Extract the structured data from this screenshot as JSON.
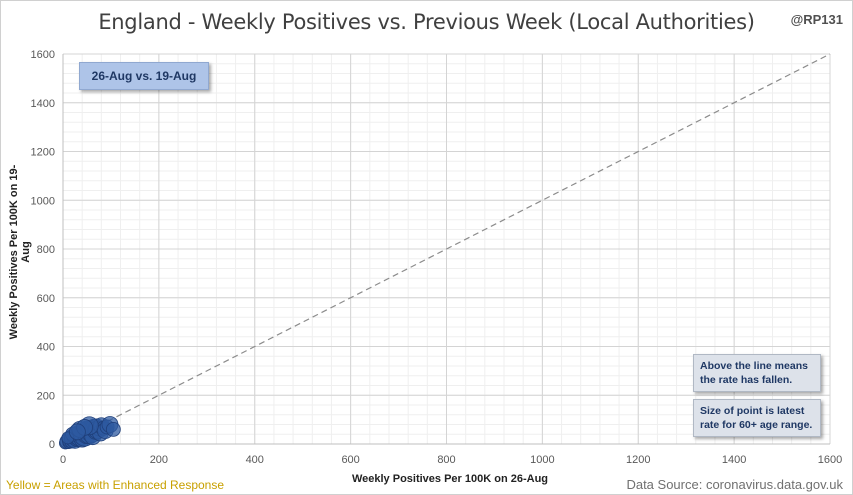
{
  "header": {
    "title": "England - Weekly Positives vs. Previous Week (Local Authorities)",
    "handle": "@RP131"
  },
  "badge": {
    "label": "26-Aug vs. 19-Aug"
  },
  "notes": {
    "above_line": "Above the line means the rate has fallen.",
    "point_size": "Size of point is latest rate for 60+ age range."
  },
  "footer": {
    "legend_note": "Yellow = Areas with Enhanced Response",
    "source": "Data Source: coronavirus.data.gov.uk"
  },
  "chart_data": {
    "type": "scatter",
    "title": "England - Weekly Positives vs. Previous Week (Local Authorities)",
    "xlabel": "Weekly Positives Per 100K on 26-Aug",
    "ylabel": "Weekly Positives Per 100K on 19-Aug",
    "xlim": [
      0,
      1600
    ],
    "ylim": [
      0,
      1600
    ],
    "x_ticks": [
      0,
      200,
      400,
      600,
      800,
      1000,
      1200,
      1400,
      1600
    ],
    "y_ticks": [
      0,
      200,
      400,
      600,
      800,
      1000,
      1200,
      1400,
      1600
    ],
    "grid": true,
    "reference_line": {
      "style": "dashed",
      "from": [
        0,
        0
      ],
      "to": [
        1600,
        1600
      ]
    },
    "point_color": "#2e5aa0",
    "points": [
      {
        "x": 5,
        "y": 4,
        "r": 6
      },
      {
        "x": 8,
        "y": 10,
        "r": 7
      },
      {
        "x": 12,
        "y": 6,
        "r": 6
      },
      {
        "x": 15,
        "y": 18,
        "r": 8
      },
      {
        "x": 18,
        "y": 12,
        "r": 7
      },
      {
        "x": 22,
        "y": 25,
        "r": 9
      },
      {
        "x": 25,
        "y": 15,
        "r": 8
      },
      {
        "x": 28,
        "y": 30,
        "r": 9
      },
      {
        "x": 30,
        "y": 22,
        "r": 8
      },
      {
        "x": 33,
        "y": 35,
        "r": 10
      },
      {
        "x": 35,
        "y": 28,
        "r": 9
      },
      {
        "x": 38,
        "y": 40,
        "r": 10
      },
      {
        "x": 40,
        "y": 20,
        "r": 8
      },
      {
        "x": 42,
        "y": 45,
        "r": 9
      },
      {
        "x": 45,
        "y": 32,
        "r": 10
      },
      {
        "x": 48,
        "y": 50,
        "r": 10
      },
      {
        "x": 50,
        "y": 38,
        "r": 9
      },
      {
        "x": 52,
        "y": 55,
        "r": 10
      },
      {
        "x": 55,
        "y": 42,
        "r": 10
      },
      {
        "x": 58,
        "y": 60,
        "r": 9
      },
      {
        "x": 60,
        "y": 48,
        "r": 10
      },
      {
        "x": 62,
        "y": 30,
        "r": 8
      },
      {
        "x": 65,
        "y": 65,
        "r": 9
      },
      {
        "x": 68,
        "y": 52,
        "r": 8
      },
      {
        "x": 70,
        "y": 70,
        "r": 8
      },
      {
        "x": 72,
        "y": 58,
        "r": 9
      },
      {
        "x": 75,
        "y": 62,
        "r": 7
      },
      {
        "x": 78,
        "y": 45,
        "r": 8
      },
      {
        "x": 80,
        "y": 75,
        "r": 8
      },
      {
        "x": 85,
        "y": 65,
        "r": 7
      },
      {
        "x": 88,
        "y": 55,
        "r": 8
      },
      {
        "x": 92,
        "y": 70,
        "r": 7
      },
      {
        "x": 98,
        "y": 80,
        "r": 8
      },
      {
        "x": 105,
        "y": 60,
        "r": 7
      },
      {
        "x": 20,
        "y": 40,
        "r": 7
      },
      {
        "x": 35,
        "y": 60,
        "r": 8
      },
      {
        "x": 10,
        "y": 25,
        "r": 6
      },
      {
        "x": 55,
        "y": 75,
        "r": 9
      },
      {
        "x": 45,
        "y": 68,
        "r": 8
      },
      {
        "x": 30,
        "y": 50,
        "r": 8
      }
    ]
  }
}
